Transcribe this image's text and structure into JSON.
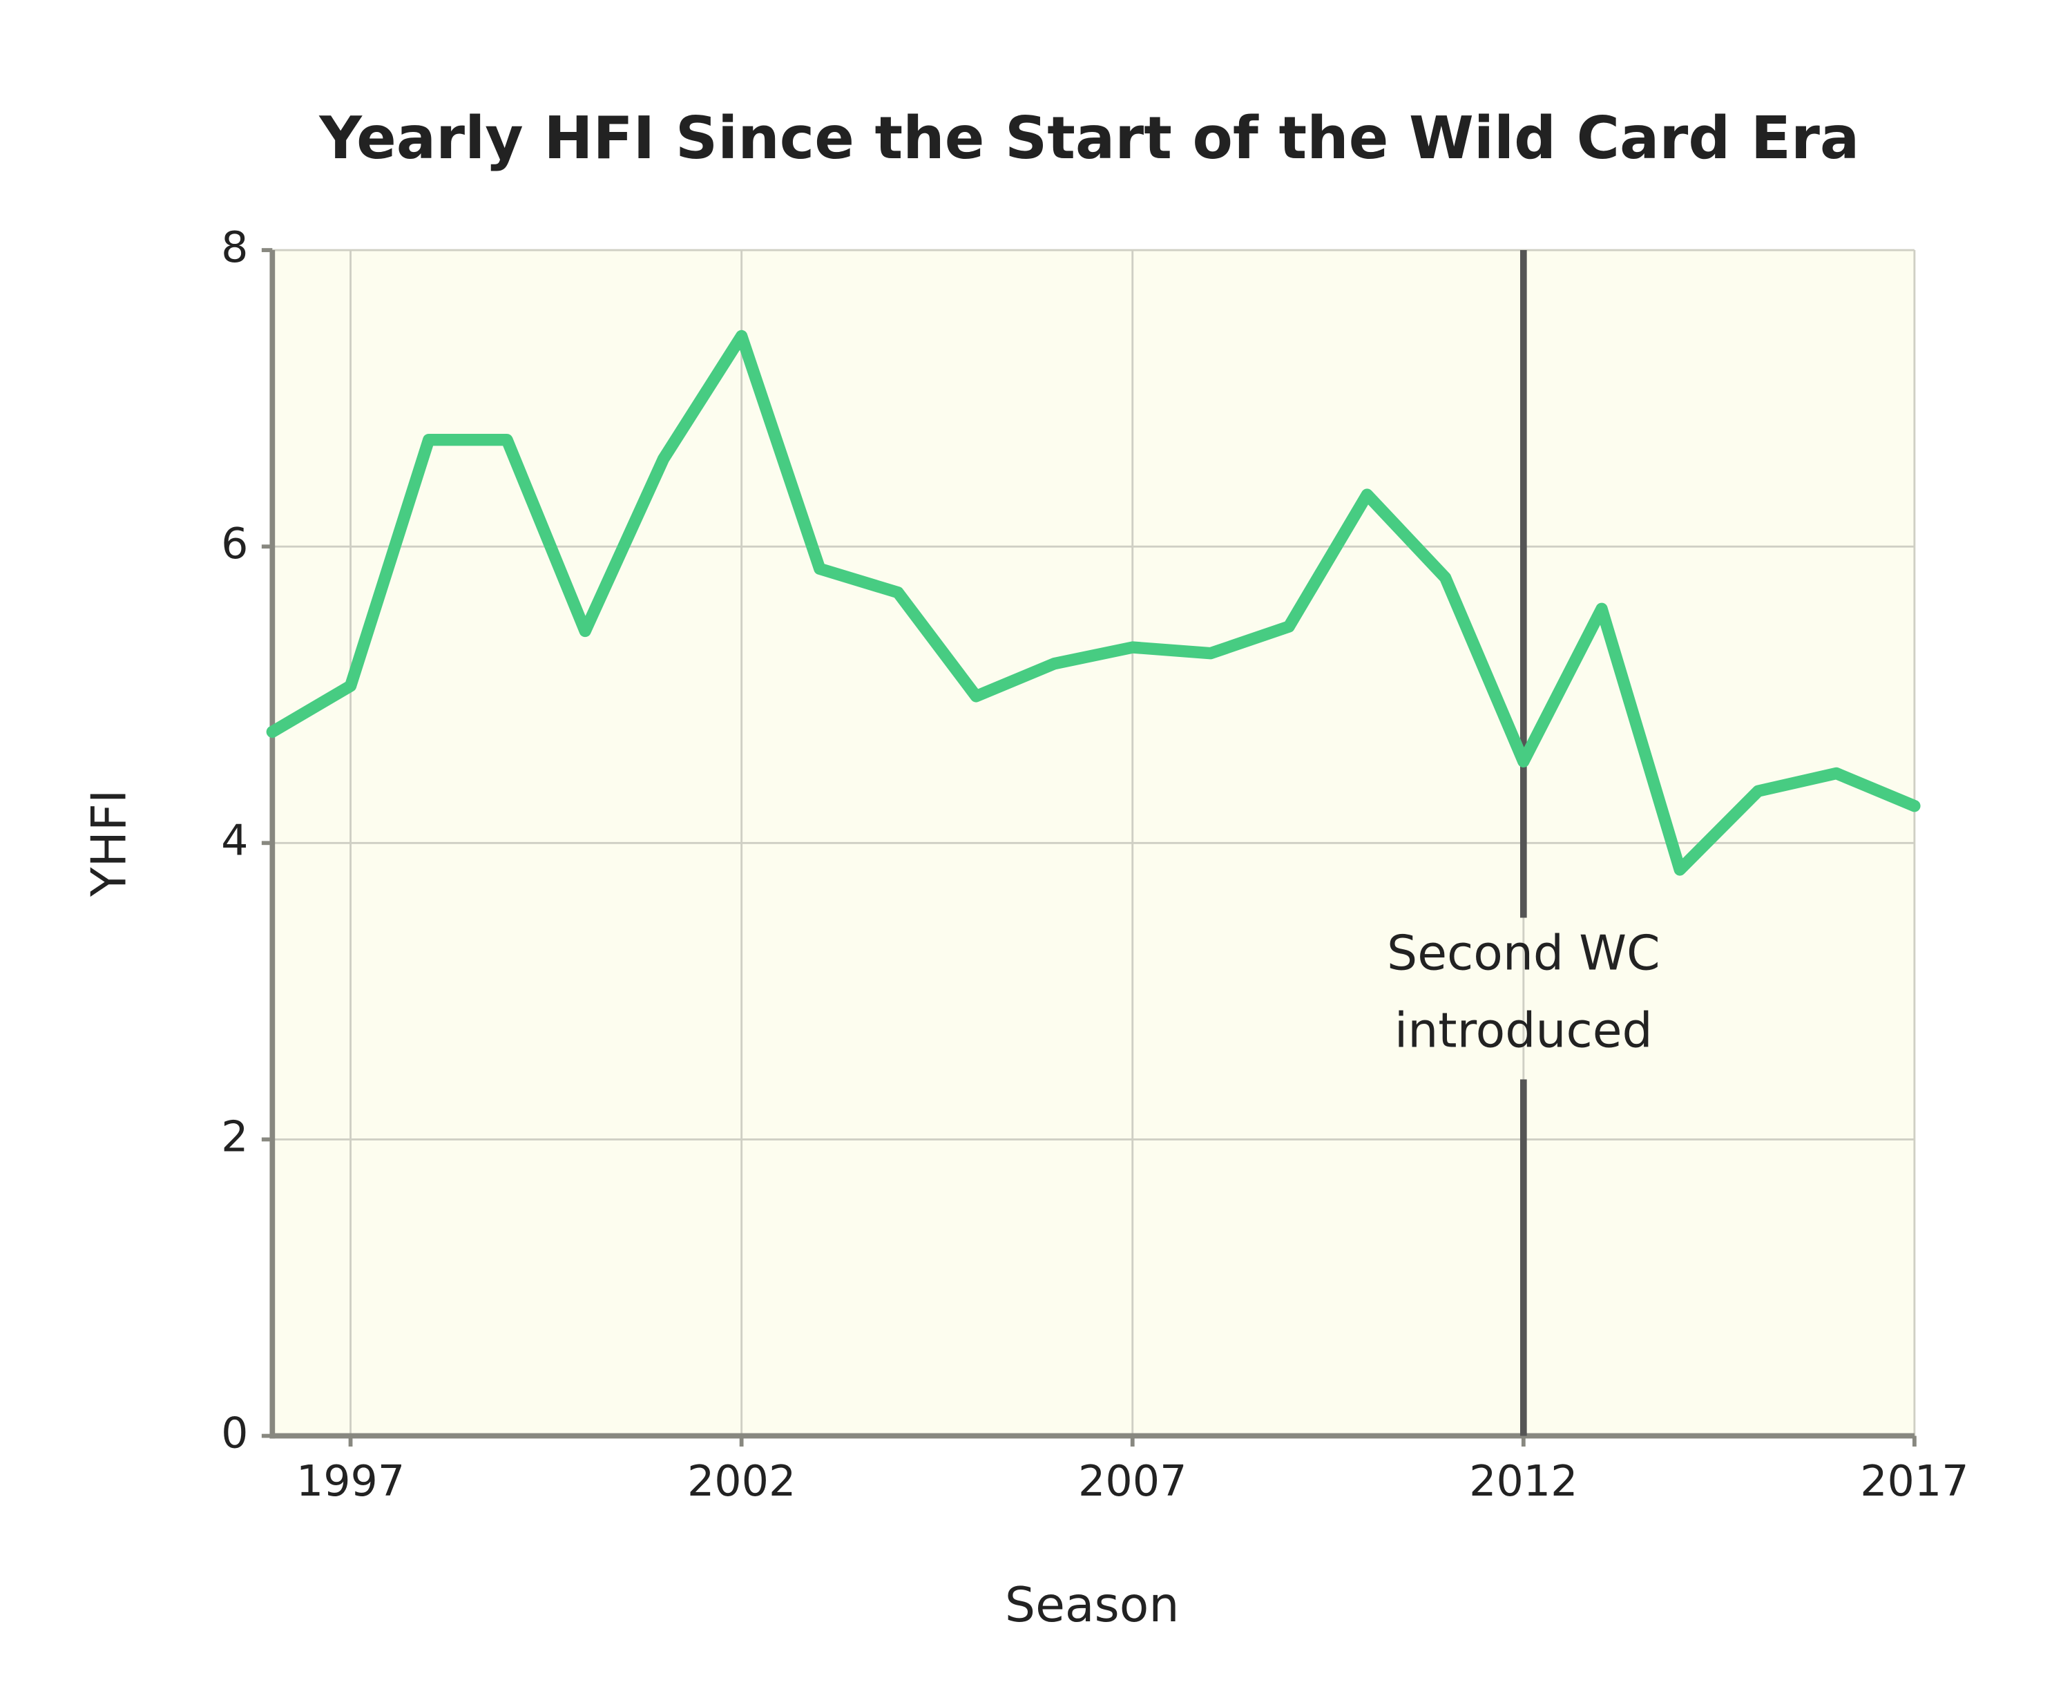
{
  "chart_data": {
    "type": "line",
    "title": "Yearly HFI Since the Start of the Wild Card Era",
    "x_label": "Season",
    "y_label": "YHFI",
    "x": [
      1996,
      1997,
      1998,
      1999,
      2000,
      2001,
      2002,
      2003,
      2004,
      2005,
      2006,
      2007,
      2008,
      2009,
      2010,
      2011,
      2012,
      2013,
      2014,
      2015,
      2016,
      2017
    ],
    "series": [
      {
        "name": "YHFI",
        "color": "#47cc82",
        "values": [
          4.75,
          5.06,
          6.72,
          6.72,
          5.43,
          6.59,
          7.42,
          5.85,
          5.69,
          4.99,
          5.21,
          5.32,
          5.28,
          5.46,
          6.35,
          5.79,
          4.55,
          5.58,
          3.82,
          4.35,
          4.47,
          4.25
        ]
      }
    ],
    "xlim": [
      1996,
      2017
    ],
    "xticks": [
      1997,
      2002,
      2007,
      2012,
      2017
    ],
    "ylim": [
      0,
      8
    ],
    "yticks": [
      0,
      2,
      4,
      6,
      8
    ],
    "grid": true,
    "annotation": {
      "x": 2012,
      "text": [
        "Second WC",
        "introduced"
      ]
    }
  }
}
